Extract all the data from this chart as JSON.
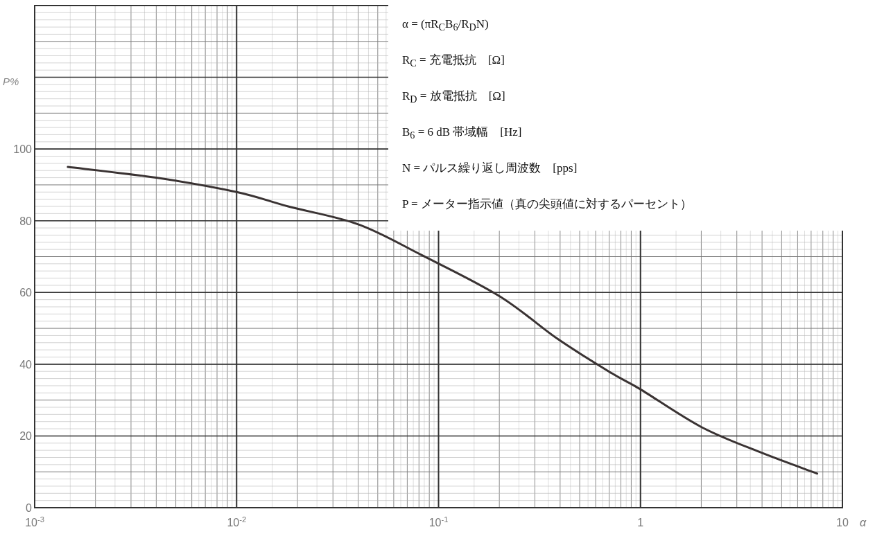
{
  "chart_data": {
    "type": "line",
    "log": "x",
    "grid": true,
    "xlabel": "α",
    "ylabel": "P%",
    "xlim": [
      0.001,
      10
    ],
    "ylim": [
      0,
      140
    ],
    "xticks": [
      {
        "value": 0.001,
        "label": "10$^{-3}$"
      },
      {
        "value": 0.01,
        "label": "10$^{-2}$"
      },
      {
        "value": 0.1,
        "label": "10$^{-1}$"
      },
      {
        "value": 1,
        "label": "1"
      },
      {
        "value": 10,
        "label": "10"
      }
    ],
    "yticks": [
      0,
      20,
      40,
      60,
      80,
      100,
      {
        "value": 120,
        "label": null
      }
    ],
    "x": [
      0.00146,
      0.004,
      0.01,
      0.018,
      0.04,
      0.082,
      0.2,
      0.39,
      0.72,
      1.0,
      2.0,
      3.9,
      7.5
    ],
    "series": [
      {
        "color": "#3a3333",
        "values": [
          95,
          92,
          88,
          84,
          79,
          70.5,
          59,
          47,
          37.5,
          33,
          22.5,
          15.5,
          9.5
        ]
      }
    ],
    "annotations": [
      "α = (πR$_{C}$B$_{6}$/R$_{D}$N)",
      "R$_{C}$ = 充電抵抗　[Ω]",
      "R$_{D}$ = 放電抵抗　[Ω]",
      "B$_{6}$ = 6 dB 帯域幅　[Hz]",
      "N = パルス繰り返し周波数　[pps]",
      "P = メーター指示値（真の尖頭値に対するパーセント）"
    ]
  }
}
